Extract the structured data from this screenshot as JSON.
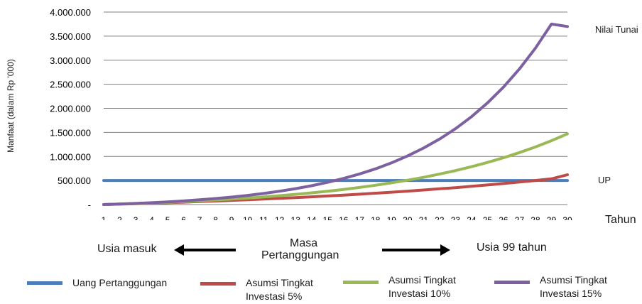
{
  "chart_data": {
    "type": "line",
    "title": "",
    "ylabel": "Manfaat (dalam Rp '000)",
    "xlabel": "Tahun",
    "ylim": [
      0,
      4000000
    ],
    "grid": true,
    "y_ticks": [
      {
        "value": 0,
        "label": "-"
      },
      {
        "value": 500000,
        "label": "500.000"
      },
      {
        "value": 1000000,
        "label": "1.000.000"
      },
      {
        "value": 1500000,
        "label": "1.500.000"
      },
      {
        "value": 2000000,
        "label": "2.000.000"
      },
      {
        "value": 2500000,
        "label": "2.500.000"
      },
      {
        "value": 3000000,
        "label": "3.000.000"
      },
      {
        "value": 3500000,
        "label": "3.500.000"
      },
      {
        "value": 4000000,
        "label": "4.000.000"
      }
    ],
    "x": [
      1,
      2,
      3,
      4,
      5,
      6,
      7,
      8,
      9,
      10,
      11,
      12,
      13,
      14,
      15,
      16,
      17,
      18,
      19,
      20,
      21,
      22,
      23,
      24,
      25,
      26,
      27,
      28,
      29,
      30
    ],
    "series": [
      {
        "name": "Uang Pertanggungan",
        "color": "#4a7ebb",
        "values": [
          500000,
          500000,
          500000,
          500000,
          500000,
          500000,
          500000,
          500000,
          500000,
          500000,
          500000,
          500000,
          500000,
          500000,
          500000,
          500000,
          500000,
          500000,
          500000,
          500000,
          500000,
          500000,
          500000,
          500000,
          500000,
          500000,
          500000,
          500000,
          500000,
          500000
        ]
      },
      {
        "name": "Asumsi Tingkat Investasi 5%",
        "color": "#be4b48",
        "values": [
          0,
          9000,
          18500,
          28500,
          39000,
          50000,
          61500,
          73800,
          86700,
          100200,
          114400,
          129300,
          145000,
          161400,
          178800,
          197000,
          216000,
          236000,
          257000,
          279000,
          302000,
          327000,
          352000,
          379000,
          407000,
          437000,
          468000,
          500000,
          535000,
          620000
        ]
      },
      {
        "name": "Asumsi Tingkat Investasi 10%",
        "color": "#98b954",
        "values": [
          0,
          10000,
          21000,
          33000,
          46000,
          61000,
          77000,
          95000,
          114000,
          135000,
          158000,
          184000,
          212000,
          243000,
          277000,
          315000,
          356000,
          401000,
          451000,
          506000,
          566000,
          633000,
          706000,
          787000,
          875000,
          973000,
          1080000,
          1197000,
          1327000,
          1470000
        ]
      },
      {
        "name": "Asumsi Tingkat Investasi 15%",
        "color": "#7d60a0",
        "values": [
          0,
          11000,
          24000,
          39000,
          56000,
          76000,
          99000,
          125000,
          155000,
          190000,
          230000,
          277000,
          330000,
          391000,
          462000,
          543000,
          636000,
          743000,
          867000,
          1009000,
          1173000,
          1361000,
          1577000,
          1826000,
          2112000,
          2440000,
          2818000,
          3252000,
          3751000,
          3700000
        ]
      }
    ],
    "annotations": {
      "top_right": "Nilai Tunai",
      "right_mid": "UP"
    }
  },
  "captions": {
    "left": "Usia masuk",
    "center_line1": "Masa",
    "center_line2": "Pertanggungan",
    "right": "Usia 99 tahun"
  },
  "legend": [
    {
      "line1": "Uang Pertanggungan",
      "line2": "",
      "color": "#4a7ebb"
    },
    {
      "line1": "Asumsi Tingkat",
      "line2": "Investasi 5%",
      "color": "#be4b48"
    },
    {
      "line1": "Asumsi Tingkat",
      "line2": "Investasi 10%",
      "color": "#98b954"
    },
    {
      "line1": "Asumsi Tingkat",
      "line2": "Investasi 15%",
      "color": "#7d60a0"
    }
  ]
}
